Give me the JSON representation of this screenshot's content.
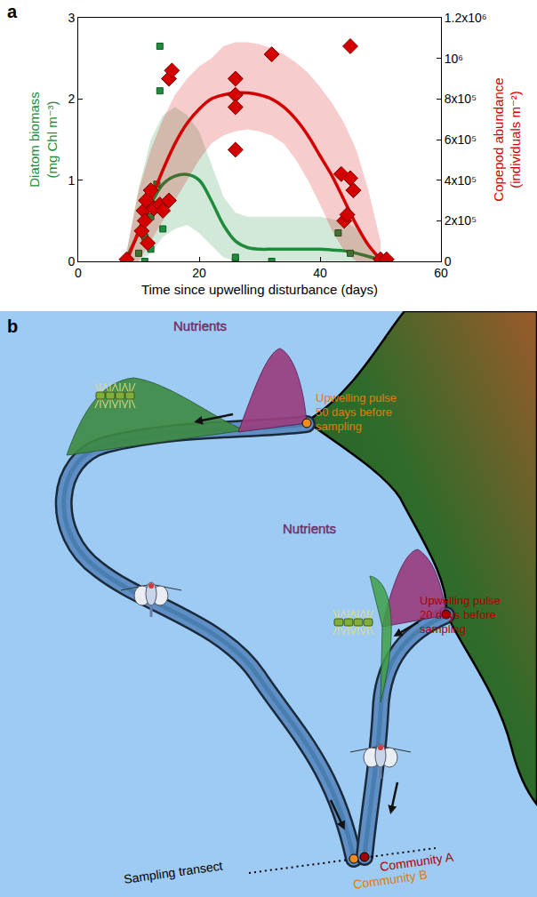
{
  "chart_data": {
    "label": "a",
    "type": "scatter",
    "x_label": "Time since upwelling disturbance (days)",
    "y_label": "Diatom biomass (mg Chl m⁻³)",
    "y2_label": "Copepod abundance (individuals m⁻²)",
    "xlim": [
      0,
      60
    ],
    "xticks": [
      0,
      20,
      40,
      60
    ],
    "ylim": [
      0,
      3
    ],
    "yticks": [
      0,
      1,
      2,
      3
    ],
    "y2lim": [
      0,
      1200000
    ],
    "y2ticks": [
      0,
      {
        "value": 200000,
        "label": "2x10⁵"
      },
      {
        "value": 400000,
        "label": "4x10⁵"
      },
      {
        "value": 600000,
        "label": "6x10⁵"
      },
      {
        "value": 800000,
        "label": "8x10⁵"
      },
      {
        "value": 1000000,
        "label": "10⁶"
      },
      {
        "value": 1200000,
        "label": "1.2x10⁶"
      }
    ],
    "grid": false,
    "series": [
      {
        "type": "line",
        "axis": "y",
        "color": "#1e8c3c",
        "x": [
          8,
          10,
          12,
          14,
          16,
          18,
          20,
          22,
          24,
          26,
          28,
          30,
          32,
          34,
          36,
          38,
          40,
          42,
          44,
          46,
          48,
          50
        ],
        "values": [
          0.05,
          0.35,
          0.7,
          0.95,
          1.05,
          1.07,
          1.0,
          0.75,
          0.45,
          0.25,
          0.17,
          0.15,
          0.15,
          0.15,
          0.15,
          0.15,
          0.15,
          0.14,
          0.13,
          0.1,
          0.06,
          0.02
        ],
        "lower": [
          0,
          0,
          0.1,
          0.3,
          0.4,
          0.45,
          0.35,
          0.2,
          0.05,
          0,
          0,
          0,
          0,
          0,
          0,
          0,
          0,
          0,
          0,
          0,
          0,
          0
        ],
        "upper": [
          0.1,
          0.9,
          1.5,
          1.8,
          1.9,
          1.8,
          1.6,
          1.2,
          0.8,
          0.6,
          0.55,
          0.55,
          0.55,
          0.55,
          0.55,
          0.55,
          0.55,
          0.52,
          0.5,
          0.4,
          0.2,
          0.05
        ]
      },
      {
        "type": "line",
        "axis": "y2",
        "color": "#d40000",
        "x": [
          8,
          10,
          12,
          14,
          16,
          18,
          20,
          22,
          24,
          26,
          28,
          30,
          32,
          34,
          36,
          38,
          40,
          42,
          44,
          46,
          48,
          50
        ],
        "values": [
          0,
          150000,
          300000,
          450000,
          580000,
          680000,
          750000,
          800000,
          820000,
          830000,
          830000,
          820000,
          800000,
          760000,
          700000,
          620000,
          520000,
          420000,
          300000,
          180000,
          80000,
          10000
        ],
        "lower": [
          0,
          0,
          100000,
          200000,
          300000,
          400000,
          500000,
          580000,
          620000,
          640000,
          650000,
          640000,
          620000,
          580000,
          500000,
          400000,
          280000,
          150000,
          50000,
          0,
          0,
          0
        ],
        "upper": [
          50000,
          350000,
          550000,
          700000,
          820000,
          900000,
          960000,
          1000000,
          1060000,
          1080000,
          1080000,
          1070000,
          1050000,
          1020000,
          980000,
          930000,
          860000,
          780000,
          680000,
          550000,
          350000,
          100000
        ]
      },
      {
        "type": "scatter",
        "axis": "y",
        "marker": "square",
        "color": "#1e8c3c",
        "x": [
          8,
          10,
          11,
          11,
          12,
          12,
          13,
          13,
          13.5,
          13.5,
          14,
          26,
          26,
          32,
          43,
          45,
          51
        ],
        "values": [
          0.02,
          0.1,
          0.0,
          0.3,
          0.15,
          0.55,
          0.7,
          0.95,
          2.1,
          2.65,
          0.4,
          0.0,
          0.05,
          0.0,
          0.35,
          0.1,
          0.0
        ]
      },
      {
        "type": "scatter",
        "axis": "y2",
        "marker": "diamond",
        "color": "#d40000",
        "x": [
          8,
          10.5,
          10.8,
          11,
          11.2,
          11.5,
          12,
          12.5,
          13.5,
          14,
          15,
          15,
          15.5,
          26,
          26,
          26,
          26,
          32,
          43.5,
          44,
          44.5,
          45,
          45,
          45.5,
          50,
          51
        ],
        "values": [
          10000,
          150000,
          250000,
          200000,
          300000,
          90000,
          350000,
          260000,
          280000,
          250000,
          300000,
          900000,
          940000,
          900000,
          820000,
          760000,
          550000,
          1020000,
          430000,
          200000,
          230000,
          410000,
          1060000,
          350000,
          10000,
          10000
        ]
      }
    ]
  },
  "diagram": {
    "label": "b",
    "texts": {
      "nutrients_1": "Nutrients",
      "nutrients_2": "Nutrients",
      "pulse_1": "Upwelling pulse 50 days before sampling",
      "pulse_2": "Upwelling pulse 20 days before sampling",
      "transect": "Sampling transect",
      "community_a": "Community A",
      "community_b": "Community B"
    }
  }
}
